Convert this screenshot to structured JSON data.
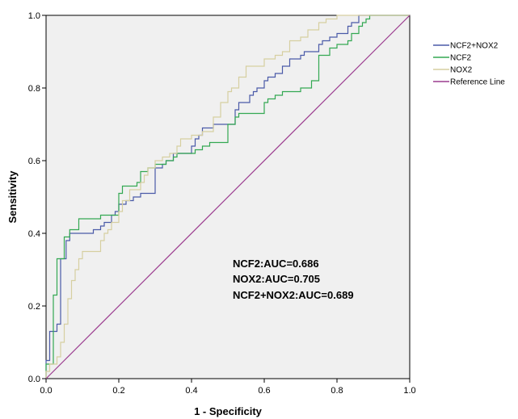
{
  "chart_data": {
    "type": "line",
    "title": "",
    "xlabel": "1 - Specificity",
    "ylabel": "Sensitivity",
    "xlim": [
      0,
      1
    ],
    "ylim": [
      0,
      1
    ],
    "xticks": [
      "0.0",
      "0.2",
      "0.4",
      "0.6",
      "0.8",
      "1.0"
    ],
    "yticks": [
      "0.0",
      "0.2",
      "0.4",
      "0.6",
      "0.8",
      "1.0"
    ],
    "grid": false,
    "legend_position": "right",
    "background_color": "#f0f0f0",
    "series": [
      {
        "name": "NCF2+NOX2",
        "color": "#4a5aa8",
        "points": [
          [
            0,
            0
          ],
          [
            0,
            0.05
          ],
          [
            0.01,
            0.05
          ],
          [
            0.01,
            0.13
          ],
          [
            0.03,
            0.13
          ],
          [
            0.03,
            0.15
          ],
          [
            0.04,
            0.15
          ],
          [
            0.04,
            0.33
          ],
          [
            0.055,
            0.33
          ],
          [
            0.055,
            0.38
          ],
          [
            0.065,
            0.38
          ],
          [
            0.065,
            0.4
          ],
          [
            0.13,
            0.4
          ],
          [
            0.13,
            0.41
          ],
          [
            0.15,
            0.41
          ],
          [
            0.15,
            0.42
          ],
          [
            0.16,
            0.42
          ],
          [
            0.16,
            0.43
          ],
          [
            0.18,
            0.43
          ],
          [
            0.18,
            0.45
          ],
          [
            0.19,
            0.45
          ],
          [
            0.19,
            0.46
          ],
          [
            0.2,
            0.46
          ],
          [
            0.2,
            0.48
          ],
          [
            0.22,
            0.48
          ],
          [
            0.22,
            0.49
          ],
          [
            0.24,
            0.49
          ],
          [
            0.24,
            0.5
          ],
          [
            0.26,
            0.5
          ],
          [
            0.26,
            0.51
          ],
          [
            0.3,
            0.51
          ],
          [
            0.3,
            0.58
          ],
          [
            0.32,
            0.58
          ],
          [
            0.32,
            0.59
          ],
          [
            0.33,
            0.59
          ],
          [
            0.33,
            0.6
          ],
          [
            0.35,
            0.6
          ],
          [
            0.35,
            0.62
          ],
          [
            0.4,
            0.62
          ],
          [
            0.4,
            0.64
          ],
          [
            0.41,
            0.64
          ],
          [
            0.41,
            0.66
          ],
          [
            0.42,
            0.66
          ],
          [
            0.42,
            0.67
          ],
          [
            0.43,
            0.67
          ],
          [
            0.43,
            0.69
          ],
          [
            0.46,
            0.69
          ],
          [
            0.46,
            0.7
          ],
          [
            0.52,
            0.7
          ],
          [
            0.52,
            0.74
          ],
          [
            0.53,
            0.74
          ],
          [
            0.53,
            0.76
          ],
          [
            0.56,
            0.76
          ],
          [
            0.56,
            0.78
          ],
          [
            0.57,
            0.78
          ],
          [
            0.57,
            0.79
          ],
          [
            0.58,
            0.79
          ],
          [
            0.58,
            0.8
          ],
          [
            0.6,
            0.8
          ],
          [
            0.6,
            0.82
          ],
          [
            0.61,
            0.82
          ],
          [
            0.61,
            0.83
          ],
          [
            0.63,
            0.83
          ],
          [
            0.63,
            0.84
          ],
          [
            0.65,
            0.84
          ],
          [
            0.65,
            0.86
          ],
          [
            0.67,
            0.86
          ],
          [
            0.67,
            0.88
          ],
          [
            0.7,
            0.88
          ],
          [
            0.7,
            0.89
          ],
          [
            0.71,
            0.89
          ],
          [
            0.71,
            0.9
          ],
          [
            0.75,
            0.9
          ],
          [
            0.75,
            0.92
          ],
          [
            0.76,
            0.92
          ],
          [
            0.76,
            0.93
          ],
          [
            0.78,
            0.93
          ],
          [
            0.78,
            0.94
          ],
          [
            0.8,
            0.94
          ],
          [
            0.8,
            0.95
          ],
          [
            0.83,
            0.95
          ],
          [
            0.83,
            0.97
          ],
          [
            0.84,
            0.97
          ],
          [
            0.84,
            0.98
          ],
          [
            0.86,
            0.98
          ],
          [
            0.86,
            1.0
          ],
          [
            1.0,
            1.0
          ]
        ]
      },
      {
        "name": "NCF2",
        "color": "#33a852",
        "points": [
          [
            0,
            0
          ],
          [
            0,
            0.04
          ],
          [
            0.02,
            0.04
          ],
          [
            0.02,
            0.23
          ],
          [
            0.03,
            0.23
          ],
          [
            0.03,
            0.33
          ],
          [
            0.05,
            0.33
          ],
          [
            0.05,
            0.39
          ],
          [
            0.065,
            0.39
          ],
          [
            0.065,
            0.41
          ],
          [
            0.09,
            0.41
          ],
          [
            0.09,
            0.44
          ],
          [
            0.15,
            0.44
          ],
          [
            0.15,
            0.45
          ],
          [
            0.2,
            0.45
          ],
          [
            0.2,
            0.51
          ],
          [
            0.21,
            0.51
          ],
          [
            0.21,
            0.53
          ],
          [
            0.25,
            0.53
          ],
          [
            0.25,
            0.54
          ],
          [
            0.26,
            0.54
          ],
          [
            0.26,
            0.57
          ],
          [
            0.28,
            0.57
          ],
          [
            0.28,
            0.58
          ],
          [
            0.3,
            0.58
          ],
          [
            0.3,
            0.59
          ],
          [
            0.33,
            0.59
          ],
          [
            0.33,
            0.6
          ],
          [
            0.35,
            0.6
          ],
          [
            0.35,
            0.61
          ],
          [
            0.36,
            0.61
          ],
          [
            0.36,
            0.62
          ],
          [
            0.41,
            0.62
          ],
          [
            0.41,
            0.63
          ],
          [
            0.43,
            0.63
          ],
          [
            0.43,
            0.64
          ],
          [
            0.45,
            0.64
          ],
          [
            0.45,
            0.65
          ],
          [
            0.5,
            0.65
          ],
          [
            0.5,
            0.7
          ],
          [
            0.52,
            0.7
          ],
          [
            0.52,
            0.72
          ],
          [
            0.53,
            0.72
          ],
          [
            0.53,
            0.73
          ],
          [
            0.6,
            0.73
          ],
          [
            0.6,
            0.76
          ],
          [
            0.61,
            0.76
          ],
          [
            0.61,
            0.77
          ],
          [
            0.63,
            0.77
          ],
          [
            0.63,
            0.78
          ],
          [
            0.65,
            0.78
          ],
          [
            0.65,
            0.79
          ],
          [
            0.7,
            0.79
          ],
          [
            0.7,
            0.8
          ],
          [
            0.73,
            0.8
          ],
          [
            0.73,
            0.82
          ],
          [
            0.75,
            0.82
          ],
          [
            0.75,
            0.89
          ],
          [
            0.78,
            0.89
          ],
          [
            0.78,
            0.91
          ],
          [
            0.8,
            0.91
          ],
          [
            0.8,
            0.92
          ],
          [
            0.83,
            0.92
          ],
          [
            0.83,
            0.93
          ],
          [
            0.84,
            0.93
          ],
          [
            0.84,
            0.95
          ],
          [
            0.86,
            0.95
          ],
          [
            0.86,
            0.97
          ],
          [
            0.87,
            0.97
          ],
          [
            0.87,
            0.98
          ],
          [
            0.88,
            0.98
          ],
          [
            0.88,
            0.99
          ],
          [
            0.89,
            0.99
          ],
          [
            0.89,
            1.0
          ],
          [
            1.0,
            1.0
          ]
        ]
      },
      {
        "name": "NOX2",
        "color": "#d6cfa0",
        "points": [
          [
            0,
            0
          ],
          [
            0,
            0.02
          ],
          [
            0.01,
            0.02
          ],
          [
            0.01,
            0.04
          ],
          [
            0.03,
            0.04
          ],
          [
            0.03,
            0.06
          ],
          [
            0.04,
            0.06
          ],
          [
            0.04,
            0.1
          ],
          [
            0.05,
            0.1
          ],
          [
            0.05,
            0.15
          ],
          [
            0.06,
            0.15
          ],
          [
            0.06,
            0.22
          ],
          [
            0.07,
            0.22
          ],
          [
            0.07,
            0.27
          ],
          [
            0.08,
            0.27
          ],
          [
            0.08,
            0.3
          ],
          [
            0.09,
            0.3
          ],
          [
            0.09,
            0.33
          ],
          [
            0.1,
            0.33
          ],
          [
            0.1,
            0.35
          ],
          [
            0.15,
            0.35
          ],
          [
            0.15,
            0.38
          ],
          [
            0.16,
            0.38
          ],
          [
            0.16,
            0.4
          ],
          [
            0.17,
            0.4
          ],
          [
            0.17,
            0.41
          ],
          [
            0.18,
            0.41
          ],
          [
            0.18,
            0.43
          ],
          [
            0.2,
            0.43
          ],
          [
            0.2,
            0.46
          ],
          [
            0.21,
            0.46
          ],
          [
            0.21,
            0.49
          ],
          [
            0.23,
            0.49
          ],
          [
            0.23,
            0.52
          ],
          [
            0.26,
            0.52
          ],
          [
            0.26,
            0.54
          ],
          [
            0.27,
            0.54
          ],
          [
            0.27,
            0.56
          ],
          [
            0.28,
            0.56
          ],
          [
            0.28,
            0.58
          ],
          [
            0.3,
            0.58
          ],
          [
            0.3,
            0.6
          ],
          [
            0.32,
            0.6
          ],
          [
            0.32,
            0.61
          ],
          [
            0.34,
            0.61
          ],
          [
            0.34,
            0.62
          ],
          [
            0.36,
            0.62
          ],
          [
            0.36,
            0.64
          ],
          [
            0.37,
            0.64
          ],
          [
            0.37,
            0.66
          ],
          [
            0.4,
            0.66
          ],
          [
            0.4,
            0.67
          ],
          [
            0.43,
            0.67
          ],
          [
            0.43,
            0.68
          ],
          [
            0.46,
            0.68
          ],
          [
            0.46,
            0.72
          ],
          [
            0.48,
            0.72
          ],
          [
            0.48,
            0.76
          ],
          [
            0.5,
            0.76
          ],
          [
            0.5,
            0.79
          ],
          [
            0.51,
            0.79
          ],
          [
            0.51,
            0.8
          ],
          [
            0.53,
            0.8
          ],
          [
            0.53,
            0.83
          ],
          [
            0.55,
            0.83
          ],
          [
            0.55,
            0.86
          ],
          [
            0.6,
            0.86
          ],
          [
            0.6,
            0.88
          ],
          [
            0.63,
            0.88
          ],
          [
            0.63,
            0.89
          ],
          [
            0.65,
            0.89
          ],
          [
            0.65,
            0.9
          ],
          [
            0.67,
            0.9
          ],
          [
            0.67,
            0.93
          ],
          [
            0.7,
            0.93
          ],
          [
            0.7,
            0.94
          ],
          [
            0.72,
            0.94
          ],
          [
            0.72,
            0.96
          ],
          [
            0.75,
            0.96
          ],
          [
            0.75,
            0.98
          ],
          [
            0.77,
            0.98
          ],
          [
            0.77,
            0.99
          ],
          [
            0.8,
            0.99
          ],
          [
            0.8,
            1.0
          ],
          [
            1.0,
            1.0
          ]
        ]
      },
      {
        "name": "Reference Line",
        "color": "#9b3b8f",
        "points": [
          [
            0,
            0
          ],
          [
            1,
            1
          ]
        ]
      }
    ],
    "annotations": [
      "NCF2:AUC=0.686",
      "NOX2:AUC=0.705",
      "NCF2+NOX2:AUC=0.689"
    ]
  }
}
